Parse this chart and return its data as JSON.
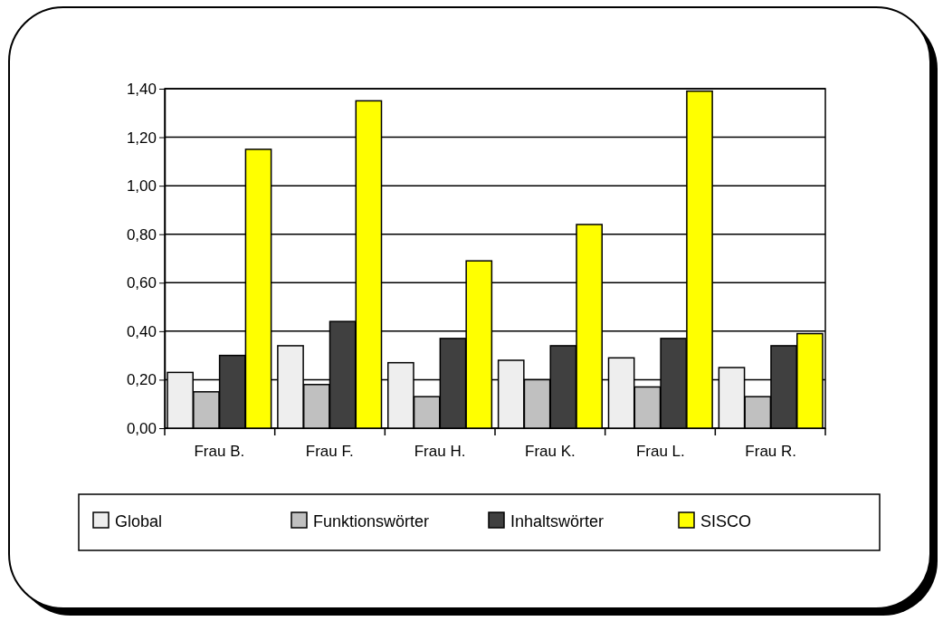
{
  "chart_data": {
    "type": "bar",
    "categories": [
      "Frau B.",
      "Frau F.",
      "Frau H.",
      "Frau K.",
      "Frau L.",
      "Frau R."
    ],
    "series": [
      {
        "name": "Global",
        "color": "#eeeeee",
        "values": [
          0.23,
          0.34,
          0.27,
          0.28,
          0.29,
          0.25
        ]
      },
      {
        "name": "Funktionswörter",
        "color": "#c0c0c0",
        "values": [
          0.15,
          0.18,
          0.13,
          0.2,
          0.17,
          0.13
        ]
      },
      {
        "name": "Inhaltswörter",
        "color": "#404040",
        "values": [
          0.3,
          0.44,
          0.37,
          0.34,
          0.37,
          0.34
        ]
      },
      {
        "name": "SISCO",
        "color": "#ffff00",
        "values": [
          1.15,
          1.35,
          0.69,
          0.84,
          1.39,
          0.39
        ]
      }
    ],
    "ylim": [
      0,
      1.4
    ],
    "yticks": [
      {
        "value": 0,
        "label": "0,00"
      },
      {
        "value": 0.2,
        "label": "0,20"
      },
      {
        "value": 0.4,
        "label": "0,40"
      },
      {
        "value": 0.6,
        "label": "0,60"
      },
      {
        "value": 0.8,
        "label": "0,80"
      },
      {
        "value": 1,
        "label": "1,00"
      },
      {
        "value": 1.2,
        "label": "1,20"
      },
      {
        "value": 1.4,
        "label": "1,40"
      }
    ],
    "grid": "y",
    "legend": "bottom"
  }
}
